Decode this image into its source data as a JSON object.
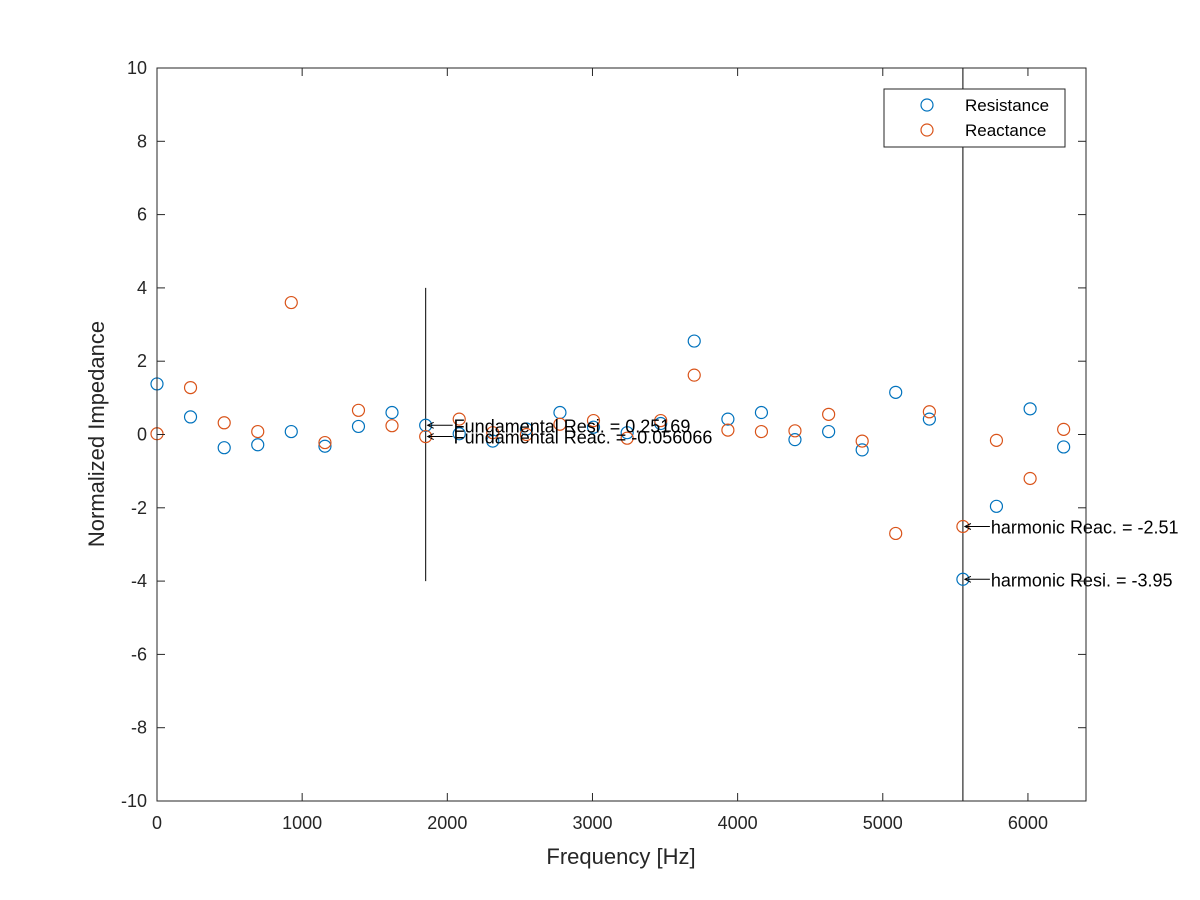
{
  "chart_data": {
    "type": "scatter",
    "xlabel": "Frequency [Hz]",
    "ylabel": "Normalized Impedance",
    "xlim": [
      0,
      6400
    ],
    "ylim": [
      -10,
      10
    ],
    "x_ticks": [
      "0",
      "1000",
      "2000",
      "3000",
      "4000",
      "5000",
      "6000"
    ],
    "y_ticks": [
      "-10",
      "-8",
      "-6",
      "-4",
      "-2",
      "0",
      "2",
      "4",
      "6",
      "8",
      "10"
    ],
    "grid": false,
    "legend_position": "top-right",
    "series": [
      {
        "name": "Resistance",
        "color": "#0072BD",
        "marker": "open-circle",
        "x": [
          0,
          231,
          463,
          694,
          925,
          1157,
          1388,
          1619,
          1851,
          2082,
          2313,
          2545,
          2776,
          3007,
          3239,
          3470,
          3701,
          3933,
          4164,
          4395,
          4627,
          4858,
          5089,
          5321,
          5552,
          5783,
          6015,
          6246
        ],
        "y": [
          1.38,
          0.48,
          -0.36,
          -0.28,
          0.08,
          -0.32,
          0.22,
          0.6,
          0.25169,
          0.02,
          -0.18,
          0.15,
          0.6,
          0.2,
          0.05,
          0.3,
          2.55,
          0.42,
          0.6,
          -0.14,
          0.08,
          -0.42,
          1.15,
          0.42,
          -3.95,
          -1.96,
          0.7,
          -0.34
        ]
      },
      {
        "name": "Reactance",
        "color": "#D95319",
        "marker": "open-circle",
        "x": [
          0,
          231,
          463,
          694,
          925,
          1157,
          1388,
          1619,
          1851,
          2082,
          2313,
          2545,
          2776,
          3007,
          3239,
          3470,
          3701,
          3933,
          4164,
          4395,
          4627,
          4858,
          5089,
          5321,
          5552,
          5783,
          6015,
          6246
        ],
        "y": [
          0.02,
          1.28,
          0.32,
          0.08,
          3.6,
          -0.22,
          0.66,
          0.24,
          -0.056066,
          0.42,
          0.05,
          0.0,
          0.28,
          0.38,
          -0.1,
          0.38,
          1.62,
          0.12,
          0.08,
          0.1,
          0.55,
          -0.18,
          -2.7,
          0.62,
          -2.51,
          -0.16,
          -1.2,
          0.14
        ]
      }
    ],
    "vertical_lines": [
      {
        "x": 1851,
        "y_from": -4,
        "y_to": 4
      },
      {
        "x": 5552,
        "y_from": -10,
        "y_to": 10
      }
    ],
    "annotations": [
      {
        "text": "Fundamental Resi. = 0.25169",
        "x": 1851,
        "y": 0.25169
      },
      {
        "text": "Fundamental Reac. = -0.056066",
        "x": 1851,
        "y": -0.056066
      },
      {
        "text": "harmonic Reac. = -2.51",
        "x": 5552,
        "y": -2.51
      },
      {
        "text": "harmonic Resi. = -3.95",
        "x": 5552,
        "y": -3.95
      }
    ]
  }
}
